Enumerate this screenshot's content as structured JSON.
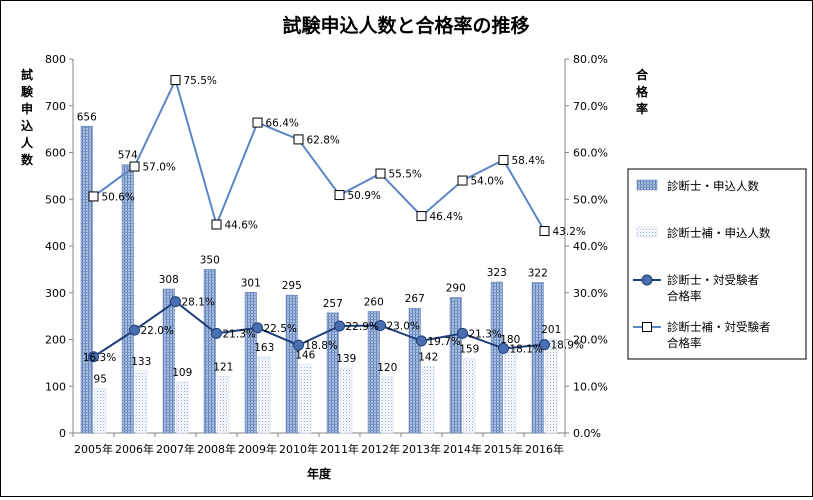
{
  "chart_data": {
    "type": "bar+line",
    "title": "試験申込人数と合格率の推移",
    "xlabel": "年度",
    "ylabel_left": "試験申込人数",
    "ylabel_right": "合格率",
    "categories": [
      "2005年",
      "2006年",
      "2007年",
      "2008年",
      "2009年",
      "2010年",
      "2011年",
      "2012年",
      "2013年",
      "2014年",
      "2015年",
      "2016年"
    ],
    "ylim_left": [
      0,
      800
    ],
    "yticks_left": [
      "0",
      "100",
      "200",
      "300",
      "400",
      "500",
      "600",
      "700",
      "800"
    ],
    "ylim_right": [
      0,
      80
    ],
    "yticks_right": [
      "0.0%",
      "10.0%",
      "20.0%",
      "30.0%",
      "40.0%",
      "50.0%",
      "60.0%",
      "70.0%",
      "80.0%"
    ],
    "legend_position": "right",
    "series": [
      {
        "name": "診断士・申込人数",
        "kind": "bar",
        "axis": "left",
        "values": [
          656,
          574,
          308,
          350,
          301,
          295,
          257,
          260,
          267,
          290,
          323,
          322
        ],
        "labels": [
          "656",
          "574",
          "308",
          "350",
          "301",
          "295",
          "257",
          "260",
          "267",
          "290",
          "323",
          "322"
        ]
      },
      {
        "name": "診断士補・申込人数",
        "kind": "bar",
        "axis": "left",
        "values": [
          95,
          133,
          109,
          121,
          163,
          146,
          139,
          120,
          142,
          159,
          180,
          201
        ],
        "labels": [
          "95",
          "133",
          "109",
          "121",
          "163",
          "146",
          "139",
          "120",
          "142",
          "159",
          "180",
          "201"
        ]
      },
      {
        "name": "診断士・対受験者合格率",
        "kind": "line",
        "axis": "right",
        "values": [
          16.3,
          22.0,
          28.1,
          21.3,
          22.5,
          18.8,
          22.9,
          23.0,
          19.7,
          21.3,
          18.1,
          18.9
        ],
        "labels": [
          "16.3%",
          "22.0%",
          "28.1%",
          "21.3%",
          "22.5%",
          "18.8%",
          "22.9%",
          "23.0%",
          "19.7%",
          "21.3%",
          "18.1%",
          "18.9%"
        ]
      },
      {
        "name": "診断士補・対受験者合格率",
        "kind": "line",
        "axis": "right",
        "values": [
          50.6,
          57.0,
          75.5,
          44.6,
          66.4,
          62.8,
          50.9,
          55.5,
          46.4,
          54.0,
          58.4,
          43.2
        ],
        "labels": [
          "50.6%",
          "57.0%",
          "75.5%",
          "44.6%",
          "66.4%",
          "62.8%",
          "50.9%",
          "55.5%",
          "46.4%",
          "54.0%",
          "58.4%",
          "43.2%"
        ]
      }
    ],
    "legend": [
      {
        "lines": [
          "診断士・申込人数"
        ]
      },
      {
        "lines": [
          "診断士補・申込人数"
        ]
      },
      {
        "lines": [
          "診断士・対受験者",
          "合格率"
        ]
      },
      {
        "lines": [
          "診断士補・対受験者",
          "合格率"
        ]
      }
    ],
    "colors": {
      "bar1_fill": "#8fa9d2",
      "bar1_stroke": "#5a7ab5",
      "bar2_fill": "#dfe8f5",
      "line1": "#1f3f7a",
      "marker1": "#4a6fb0",
      "line2": "#5b86c5",
      "axis": "#868686"
    }
  }
}
